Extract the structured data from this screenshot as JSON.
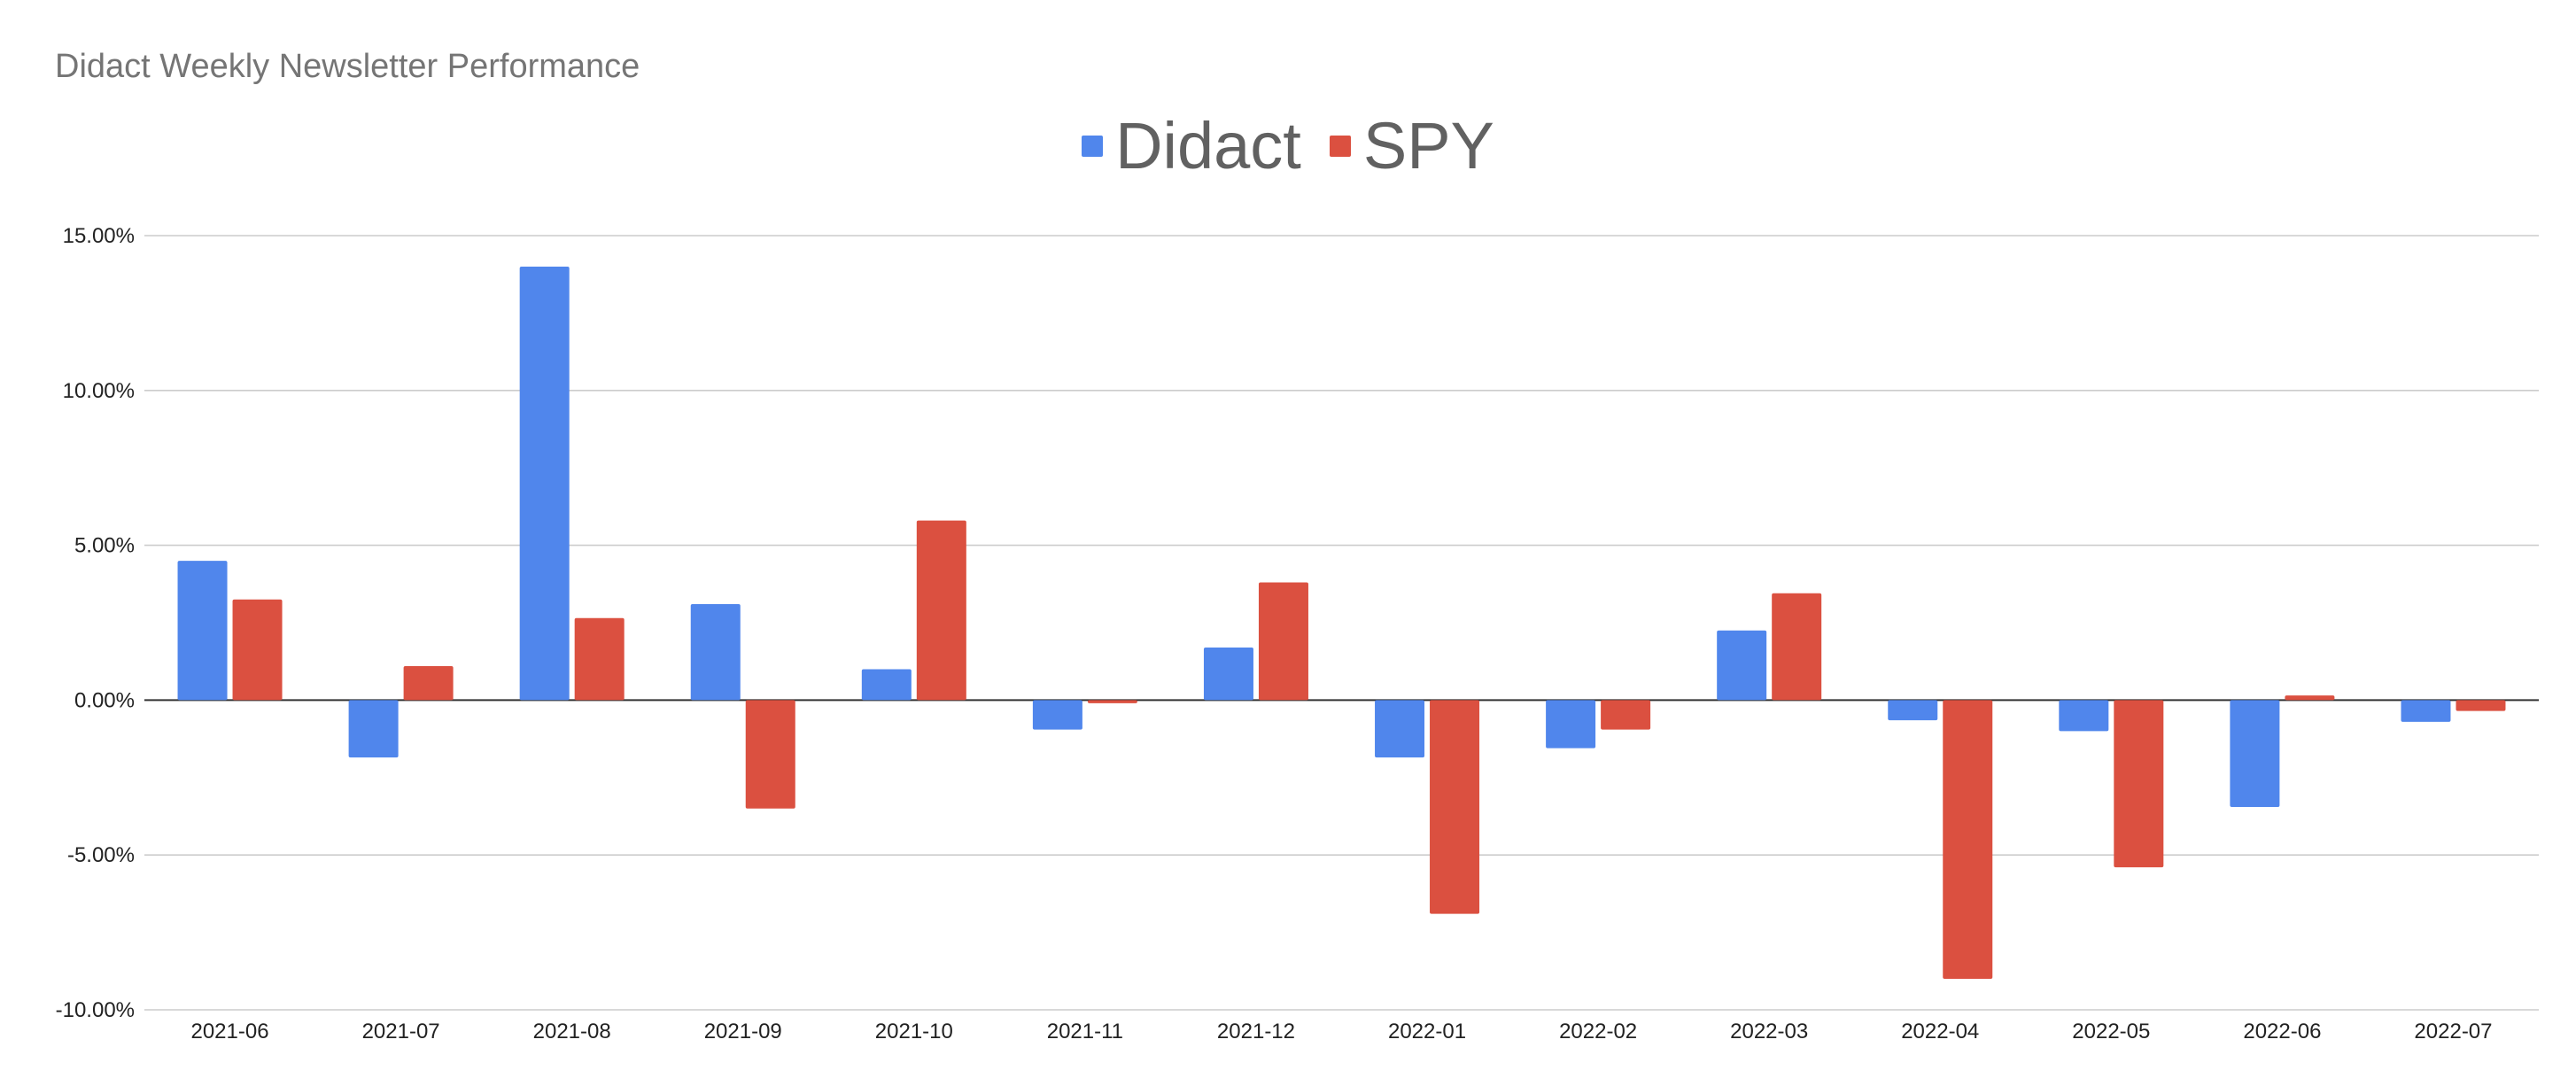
{
  "chart_data": {
    "type": "bar",
    "title": "Didact Weekly Newsletter Performance",
    "categories": [
      "2021-06",
      "2021-07",
      "2021-08",
      "2021-09",
      "2021-10",
      "2021-11",
      "2021-12",
      "2022-01",
      "2022-02",
      "2022-03",
      "2022-04",
      "2022-05",
      "2022-06",
      "2022-07"
    ],
    "series": [
      {
        "name": "Didact",
        "color": "#5086EC",
        "values": [
          4.5,
          -1.85,
          14.0,
          3.1,
          1.0,
          -0.95,
          1.7,
          -1.85,
          -1.55,
          2.25,
          -0.65,
          -1.0,
          -3.45,
          -0.7
        ]
      },
      {
        "name": "SPY",
        "color": "#DB5040",
        "values": [
          3.25,
          1.1,
          2.65,
          -3.5,
          5.8,
          -0.1,
          3.8,
          -6.9,
          -0.95,
          3.45,
          -9.0,
          -5.4,
          0.15,
          -0.35
        ]
      }
    ],
    "ylim": [
      -10,
      15
    ],
    "yticks": [
      "15.00%",
      "10.00%",
      "5.00%",
      "0.00%",
      "-5.00%",
      "-10.00%"
    ],
    "ytick_values": [
      15,
      10,
      5,
      0,
      -5,
      -10
    ],
    "grid": true,
    "legend_position": "top-center",
    "xlabel": "",
    "ylabel": ""
  }
}
